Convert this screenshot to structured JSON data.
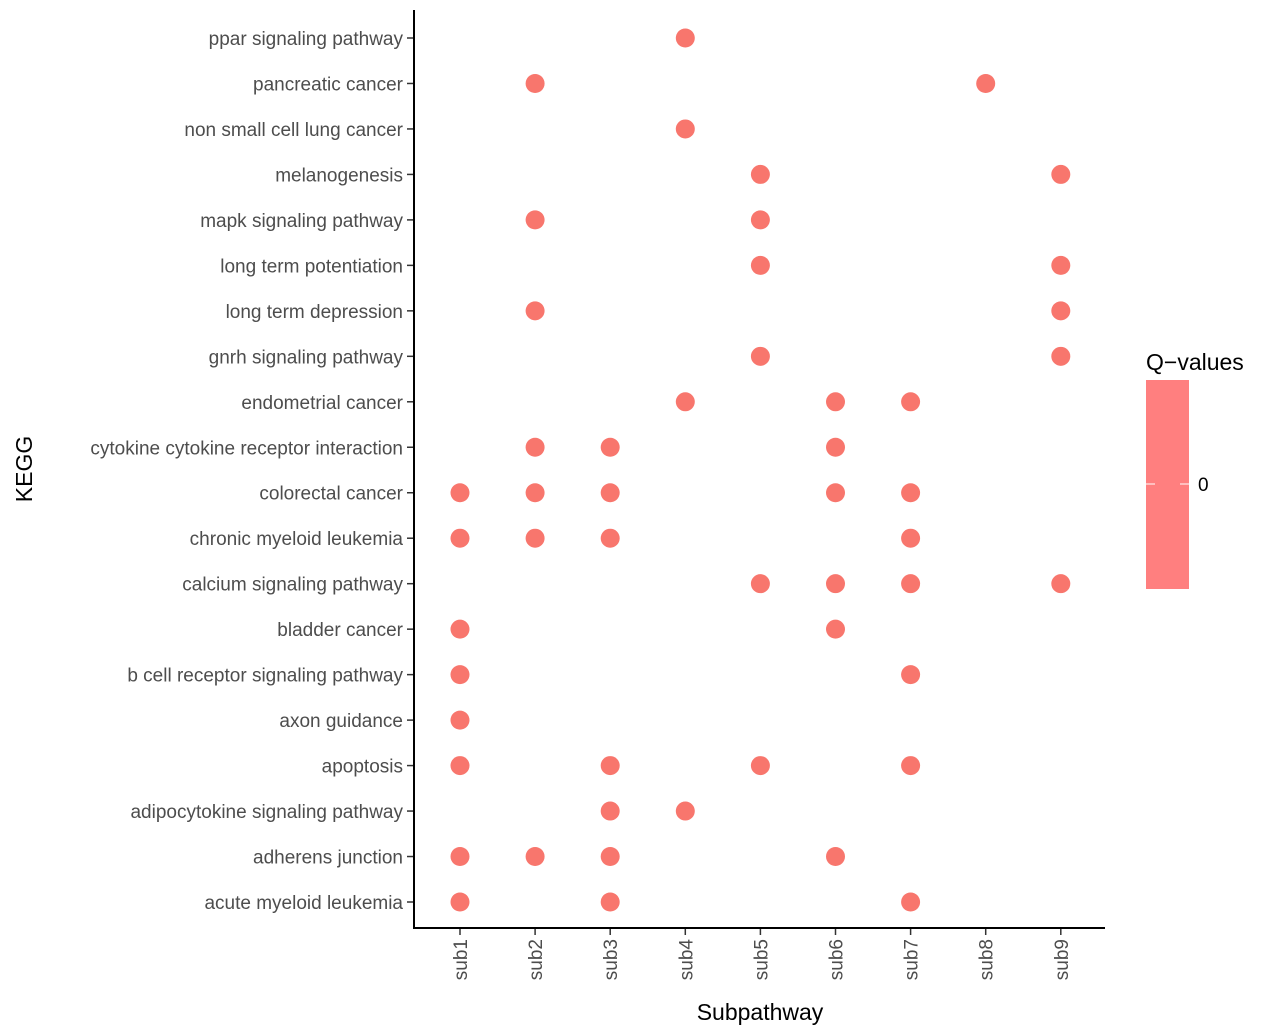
{
  "chart_data": {
    "type": "scatter",
    "xlabel": "Subpathway",
    "ylabel": "KEGG",
    "x_categories": [
      "sub1",
      "sub2",
      "sub3",
      "sub4",
      "sub5",
      "sub6",
      "sub7",
      "sub8",
      "sub9"
    ],
    "y_categories": [
      "acute myeloid leukemia",
      "adherens junction",
      "adipocytokine signaling pathway",
      "apoptosis",
      "axon guidance",
      "b cell receptor signaling pathway",
      "bladder cancer",
      "calcium signaling pathway",
      "chronic myeloid leukemia",
      "colorectal cancer",
      "cytokine cytokine receptor interaction",
      "endometrial cancer",
      "gnrh signaling pathway",
      "long term depression",
      "long term potentiation",
      "mapk signaling pathway",
      "melanogenesis",
      "non small cell lung cancer",
      "pancreatic cancer",
      "ppar signaling pathway"
    ],
    "points": [
      {
        "x": "sub4",
        "y": "ppar signaling pathway",
        "q": 0
      },
      {
        "x": "sub2",
        "y": "pancreatic cancer",
        "q": 0
      },
      {
        "x": "sub8",
        "y": "pancreatic cancer",
        "q": 0
      },
      {
        "x": "sub4",
        "y": "non small cell lung cancer",
        "q": 0
      },
      {
        "x": "sub5",
        "y": "melanogenesis",
        "q": 0
      },
      {
        "x": "sub9",
        "y": "melanogenesis",
        "q": 0
      },
      {
        "x": "sub2",
        "y": "mapk signaling pathway",
        "q": 0
      },
      {
        "x": "sub5",
        "y": "mapk signaling pathway",
        "q": 0
      },
      {
        "x": "sub5",
        "y": "long term potentiation",
        "q": 0
      },
      {
        "x": "sub9",
        "y": "long term potentiation",
        "q": 0
      },
      {
        "x": "sub2",
        "y": "long term depression",
        "q": 0
      },
      {
        "x": "sub9",
        "y": "long term depression",
        "q": 0
      },
      {
        "x": "sub5",
        "y": "gnrh signaling pathway",
        "q": 0
      },
      {
        "x": "sub9",
        "y": "gnrh signaling pathway",
        "q": 0
      },
      {
        "x": "sub4",
        "y": "endometrial cancer",
        "q": 0
      },
      {
        "x": "sub6",
        "y": "endometrial cancer",
        "q": 0
      },
      {
        "x": "sub7",
        "y": "endometrial cancer",
        "q": 0
      },
      {
        "x": "sub2",
        "y": "cytokine cytokine receptor interaction",
        "q": 0
      },
      {
        "x": "sub3",
        "y": "cytokine cytokine receptor interaction",
        "q": 0
      },
      {
        "x": "sub6",
        "y": "cytokine cytokine receptor interaction",
        "q": 0
      },
      {
        "x": "sub1",
        "y": "colorectal cancer",
        "q": 0
      },
      {
        "x": "sub2",
        "y": "colorectal cancer",
        "q": 0
      },
      {
        "x": "sub3",
        "y": "colorectal cancer",
        "q": 0
      },
      {
        "x": "sub6",
        "y": "colorectal cancer",
        "q": 0
      },
      {
        "x": "sub7",
        "y": "colorectal cancer",
        "q": 0
      },
      {
        "x": "sub1",
        "y": "chronic myeloid leukemia",
        "q": 0
      },
      {
        "x": "sub2",
        "y": "chronic myeloid leukemia",
        "q": 0
      },
      {
        "x": "sub3",
        "y": "chronic myeloid leukemia",
        "q": 0
      },
      {
        "x": "sub7",
        "y": "chronic myeloid leukemia",
        "q": 0
      },
      {
        "x": "sub5",
        "y": "calcium signaling pathway",
        "q": 0
      },
      {
        "x": "sub6",
        "y": "calcium signaling pathway",
        "q": 0
      },
      {
        "x": "sub7",
        "y": "calcium signaling pathway",
        "q": 0
      },
      {
        "x": "sub9",
        "y": "calcium signaling pathway",
        "q": 0
      },
      {
        "x": "sub1",
        "y": "bladder cancer",
        "q": 0
      },
      {
        "x": "sub6",
        "y": "bladder cancer",
        "q": 0
      },
      {
        "x": "sub1",
        "y": "b cell receptor signaling pathway",
        "q": 0
      },
      {
        "x": "sub7",
        "y": "b cell receptor signaling pathway",
        "q": 0
      },
      {
        "x": "sub1",
        "y": "axon guidance",
        "q": 0
      },
      {
        "x": "sub1",
        "y": "apoptosis",
        "q": 0
      },
      {
        "x": "sub3",
        "y": "apoptosis",
        "q": 0
      },
      {
        "x": "sub5",
        "y": "apoptosis",
        "q": 0
      },
      {
        "x": "sub7",
        "y": "apoptosis",
        "q": 0
      },
      {
        "x": "sub3",
        "y": "adipocytokine signaling pathway",
        "q": 0
      },
      {
        "x": "sub4",
        "y": "adipocytokine signaling pathway",
        "q": 0
      },
      {
        "x": "sub1",
        "y": "adherens junction",
        "q": 0
      },
      {
        "x": "sub2",
        "y": "adherens junction",
        "q": 0
      },
      {
        "x": "sub3",
        "y": "adherens junction",
        "q": 0
      },
      {
        "x": "sub6",
        "y": "adherens junction",
        "q": 0
      },
      {
        "x": "sub1",
        "y": "acute myeloid leukemia",
        "q": 0
      },
      {
        "x": "sub3",
        "y": "acute myeloid leukemia",
        "q": 0
      },
      {
        "x": "sub7",
        "y": "acute myeloid leukemia",
        "q": 0
      }
    ],
    "legend": {
      "title": "Q−values",
      "labels": [
        "0"
      ],
      "placement": "right"
    },
    "colors": {
      "point": "#F8766D",
      "legend_bar": "#FF7F7F",
      "axis": "#000000"
    },
    "grid": false
  }
}
